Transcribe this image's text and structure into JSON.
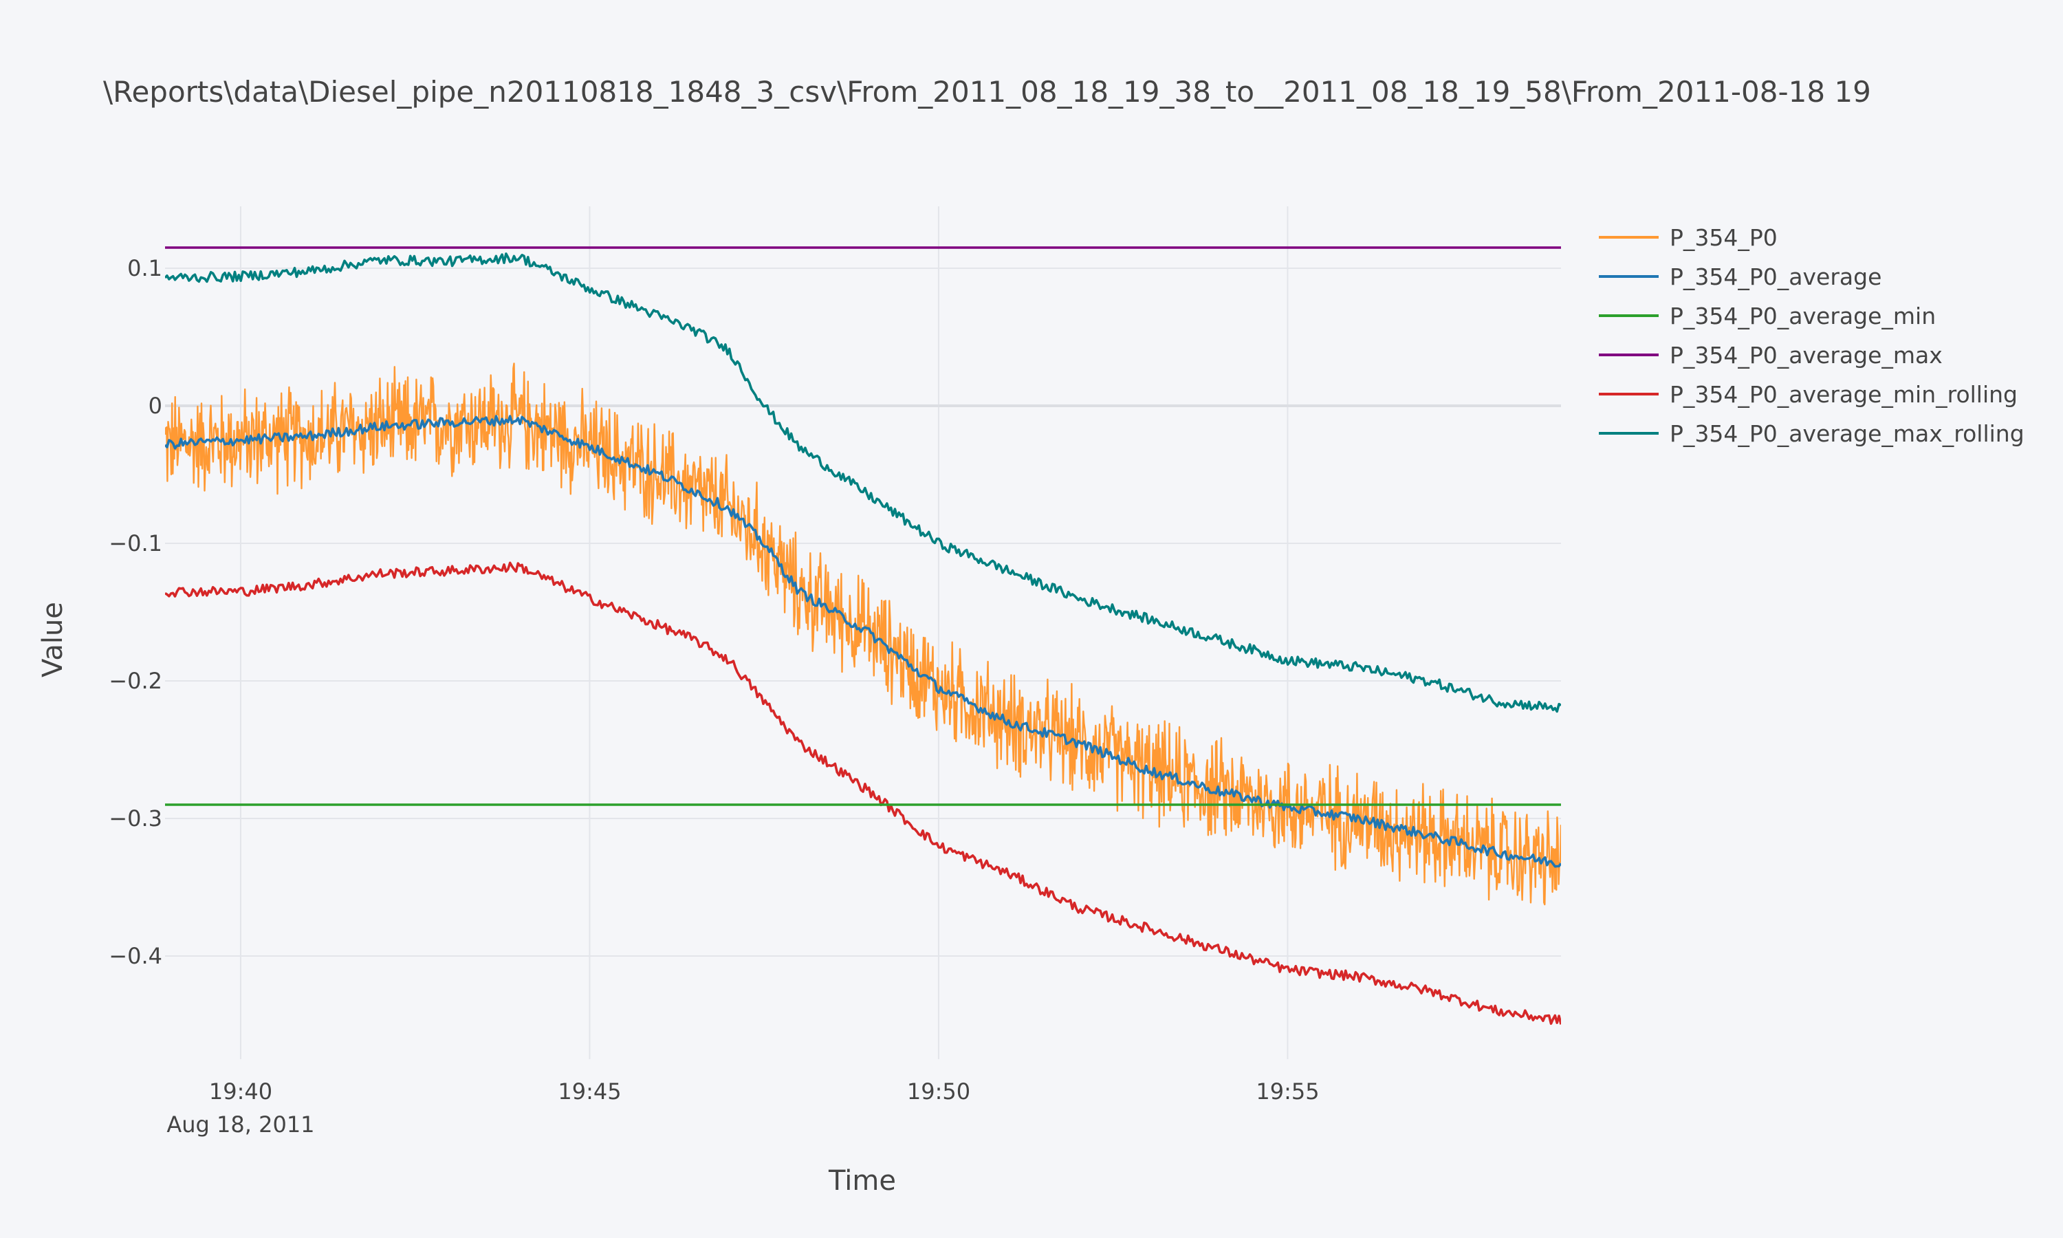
{
  "chart_data": {
    "type": "line",
    "title": "\\Reports\\data\\Diesel_pipe_n20110818_1848_3_csv\\From_2011_08_18_19_38_to__2011_08_18_19_58\\From_2011-08-18 19",
    "xlabel": "Time",
    "ylabel": "Value",
    "x_range": [
      "2011-08-18 19:38:55",
      "2011-08-18 19:58:55"
    ],
    "ylim": [
      -0.475,
      0.145
    ],
    "x_ticks": [
      {
        "t": "2011-08-18 19:40:00",
        "label": "19:40",
        "sublabel": "Aug 18, 2011"
      },
      {
        "t": "2011-08-18 19:45:00",
        "label": "19:45",
        "sublabel": ""
      },
      {
        "t": "2011-08-18 19:50:00",
        "label": "19:50",
        "sublabel": ""
      },
      {
        "t": "2011-08-18 19:55:00",
        "label": "19:55",
        "sublabel": ""
      }
    ],
    "y_ticks": [
      {
        "v": 0.1,
        "label": "0.1"
      },
      {
        "v": 0,
        "label": "0"
      },
      {
        "v": -0.1,
        "label": "−0.1"
      },
      {
        "v": -0.2,
        "label": "−0.2"
      },
      {
        "v": -0.3,
        "label": "−0.3"
      },
      {
        "v": -0.4,
        "label": "−0.4"
      }
    ],
    "grid": true,
    "legend_position": "top-right",
    "series": [
      {
        "name": "P_354_P0",
        "color": "#ff9933",
        "noise_amplitude": 0.032,
        "x": [
          "19:38:55",
          "19:40:00",
          "19:41:00",
          "19:42:00",
          "19:43:00",
          "19:44:00",
          "19:45:00",
          "19:46:00",
          "19:46:30",
          "19:47:00",
          "19:47:30",
          "19:48:00",
          "19:49:00",
          "19:50:00",
          "19:51:00",
          "19:52:00",
          "19:53:00",
          "19:54:00",
          "19:55:00",
          "19:56:00",
          "19:57:00",
          "19:58:00",
          "19:58:55"
        ],
        "y": [
          -0.028,
          -0.025,
          -0.022,
          -0.015,
          -0.012,
          -0.01,
          -0.03,
          -0.05,
          -0.062,
          -0.075,
          -0.1,
          -0.135,
          -0.165,
          -0.205,
          -0.23,
          -0.245,
          -0.265,
          -0.28,
          -0.292,
          -0.3,
          -0.312,
          -0.325,
          -0.333
        ]
      },
      {
        "name": "P_354_P0_average",
        "color": "#1f77b4",
        "x": [
          "19:38:55",
          "19:40:00",
          "19:41:00",
          "19:42:00",
          "19:43:00",
          "19:44:00",
          "19:45:00",
          "19:46:00",
          "19:46:30",
          "19:47:00",
          "19:47:30",
          "19:48:00",
          "19:49:00",
          "19:50:00",
          "19:51:00",
          "19:52:00",
          "19:53:00",
          "19:54:00",
          "19:55:00",
          "19:56:00",
          "19:57:00",
          "19:58:00",
          "19:58:55"
        ],
        "y": [
          -0.028,
          -0.025,
          -0.022,
          -0.015,
          -0.012,
          -0.01,
          -0.03,
          -0.05,
          -0.062,
          -0.075,
          -0.1,
          -0.135,
          -0.165,
          -0.205,
          -0.23,
          -0.245,
          -0.265,
          -0.28,
          -0.292,
          -0.3,
          -0.312,
          -0.325,
          -0.333
        ]
      },
      {
        "name": "P_354_P0_average_min",
        "color": "#2ca02c",
        "x": [
          "19:38:55",
          "19:58:55"
        ],
        "y": [
          -0.29,
          -0.29
        ]
      },
      {
        "name": "P_354_P0_average_max",
        "color": "#800080",
        "x": [
          "19:38:55",
          "19:58:55"
        ],
        "y": [
          0.115,
          0.115
        ]
      },
      {
        "name": "P_354_P0_average_min_rolling",
        "color": "#d62728",
        "x": [
          "19:38:55",
          "19:40:00",
          "19:41:00",
          "19:42:00",
          "19:43:00",
          "19:44:00",
          "19:45:00",
          "19:46:00",
          "19:46:30",
          "19:47:00",
          "19:47:30",
          "19:48:00",
          "19:49:00",
          "19:50:00",
          "19:51:00",
          "19:52:00",
          "19:53:00",
          "19:54:00",
          "19:55:00",
          "19:56:00",
          "19:57:00",
          "19:58:00",
          "19:58:55"
        ],
        "y": [
          -0.135,
          -0.135,
          -0.13,
          -0.122,
          -0.12,
          -0.117,
          -0.14,
          -0.16,
          -0.17,
          -0.185,
          -0.215,
          -0.245,
          -0.28,
          -0.32,
          -0.34,
          -0.365,
          -0.38,
          -0.395,
          -0.41,
          -0.415,
          -0.425,
          -0.44,
          -0.447
        ]
      },
      {
        "name": "P_354_P0_average_max_rolling",
        "color": "#008080",
        "x": [
          "19:38:55",
          "19:40:00",
          "19:41:00",
          "19:42:00",
          "19:43:00",
          "19:44:00",
          "19:45:00",
          "19:46:00",
          "19:46:30",
          "19:47:00",
          "19:47:30",
          "19:48:00",
          "19:49:00",
          "19:50:00",
          "19:51:00",
          "19:52:00",
          "19:53:00",
          "19:54:00",
          "19:55:00",
          "19:56:00",
          "19:57:00",
          "19:58:00",
          "19:58:55"
        ],
        "y": [
          0.093,
          0.094,
          0.098,
          0.106,
          0.105,
          0.108,
          0.085,
          0.065,
          0.055,
          0.04,
          0.0,
          -0.03,
          -0.065,
          -0.1,
          -0.12,
          -0.14,
          -0.155,
          -0.17,
          -0.185,
          -0.19,
          -0.2,
          -0.215,
          -0.22
        ]
      }
    ]
  }
}
